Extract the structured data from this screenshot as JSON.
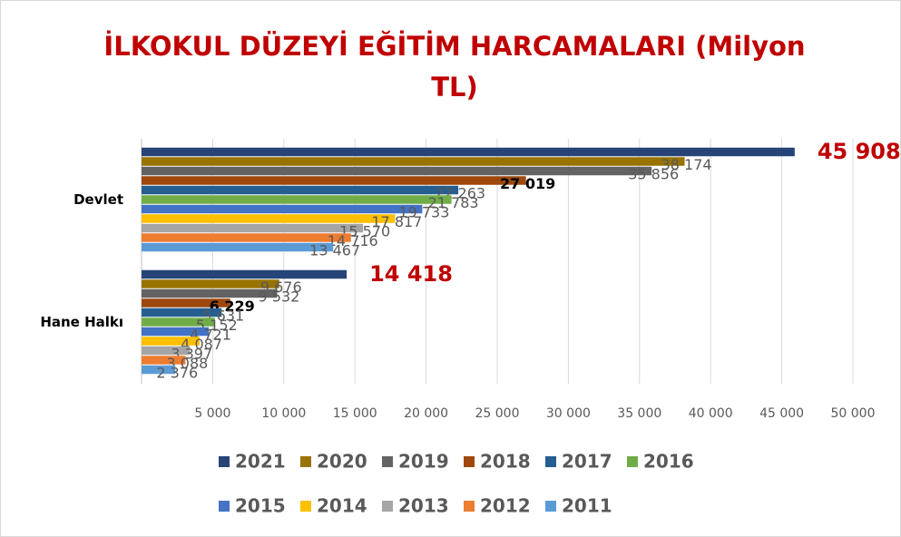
{
  "chart_data": {
    "type": "bar",
    "orientation": "horizontal",
    "title": "İLKOKUL DÜZEYİ EĞİTİM HARCAMALARI (Milyon TL)",
    "categories": [
      "Devlet",
      "Hane Halkı"
    ],
    "series": [
      {
        "name": "2021",
        "color": "#264478",
        "values": [
          45908,
          14418
        ],
        "value_labels": [
          "45 908",
          "14 418"
        ]
      },
      {
        "name": "2020",
        "color": "#997300",
        "values": [
          38174,
          9676
        ],
        "value_labels": [
          "38 174",
          "9 676"
        ]
      },
      {
        "name": "2019",
        "color": "#636363",
        "values": [
          35856,
          9532
        ],
        "value_labels": [
          "35 856",
          "9 532"
        ]
      },
      {
        "name": "2018",
        "color": "#9e480e",
        "values": [
          27019,
          6229
        ],
        "value_labels": [
          "27 019",
          "6 229"
        ]
      },
      {
        "name": "2017",
        "color": "#255e91",
        "values": [
          22263,
          5631
        ],
        "value_labels": [
          "22 263",
          "5 631"
        ]
      },
      {
        "name": "2016",
        "color": "#70ad47",
        "values": [
          21783,
          5152
        ],
        "value_labels": [
          "21 783",
          "5 152"
        ]
      },
      {
        "name": "2015",
        "color": "#4472c4",
        "values": [
          19733,
          4721
        ],
        "value_labels": [
          "19 733",
          "4 721"
        ]
      },
      {
        "name": "2014",
        "color": "#ffc000",
        "values": [
          17817,
          4087
        ],
        "value_labels": [
          "17 817",
          "4 087"
        ]
      },
      {
        "name": "2013",
        "color": "#a5a5a5",
        "values": [
          15570,
          3397
        ],
        "value_labels": [
          "15 570",
          "3 397"
        ]
      },
      {
        "name": "2012",
        "color": "#ed7d31",
        "values": [
          14716,
          3088
        ],
        "value_labels": [
          "14 716",
          "3 088"
        ]
      },
      {
        "name": "2011",
        "color": "#5b9bd5",
        "values": [
          13467,
          2376
        ],
        "value_labels": [
          "13 467",
          "2 376"
        ]
      }
    ],
    "xlim": [
      0,
      50000
    ],
    "xticks": [
      {
        "value": 5000,
        "label": "5 000"
      },
      {
        "value": 10000,
        "label": "10 000"
      },
      {
        "value": 15000,
        "label": "15 000"
      },
      {
        "value": 20000,
        "label": "20 000"
      },
      {
        "value": 25000,
        "label": "25 000"
      },
      {
        "value": 30000,
        "label": "30 000"
      },
      {
        "value": 35000,
        "label": "35 000"
      },
      {
        "value": 40000,
        "label": "40 000"
      },
      {
        "value": 45000,
        "label": "45 000"
      },
      {
        "value": 50000,
        "label": "50 000"
      }
    ],
    "grid": true,
    "legend": "bottom"
  }
}
